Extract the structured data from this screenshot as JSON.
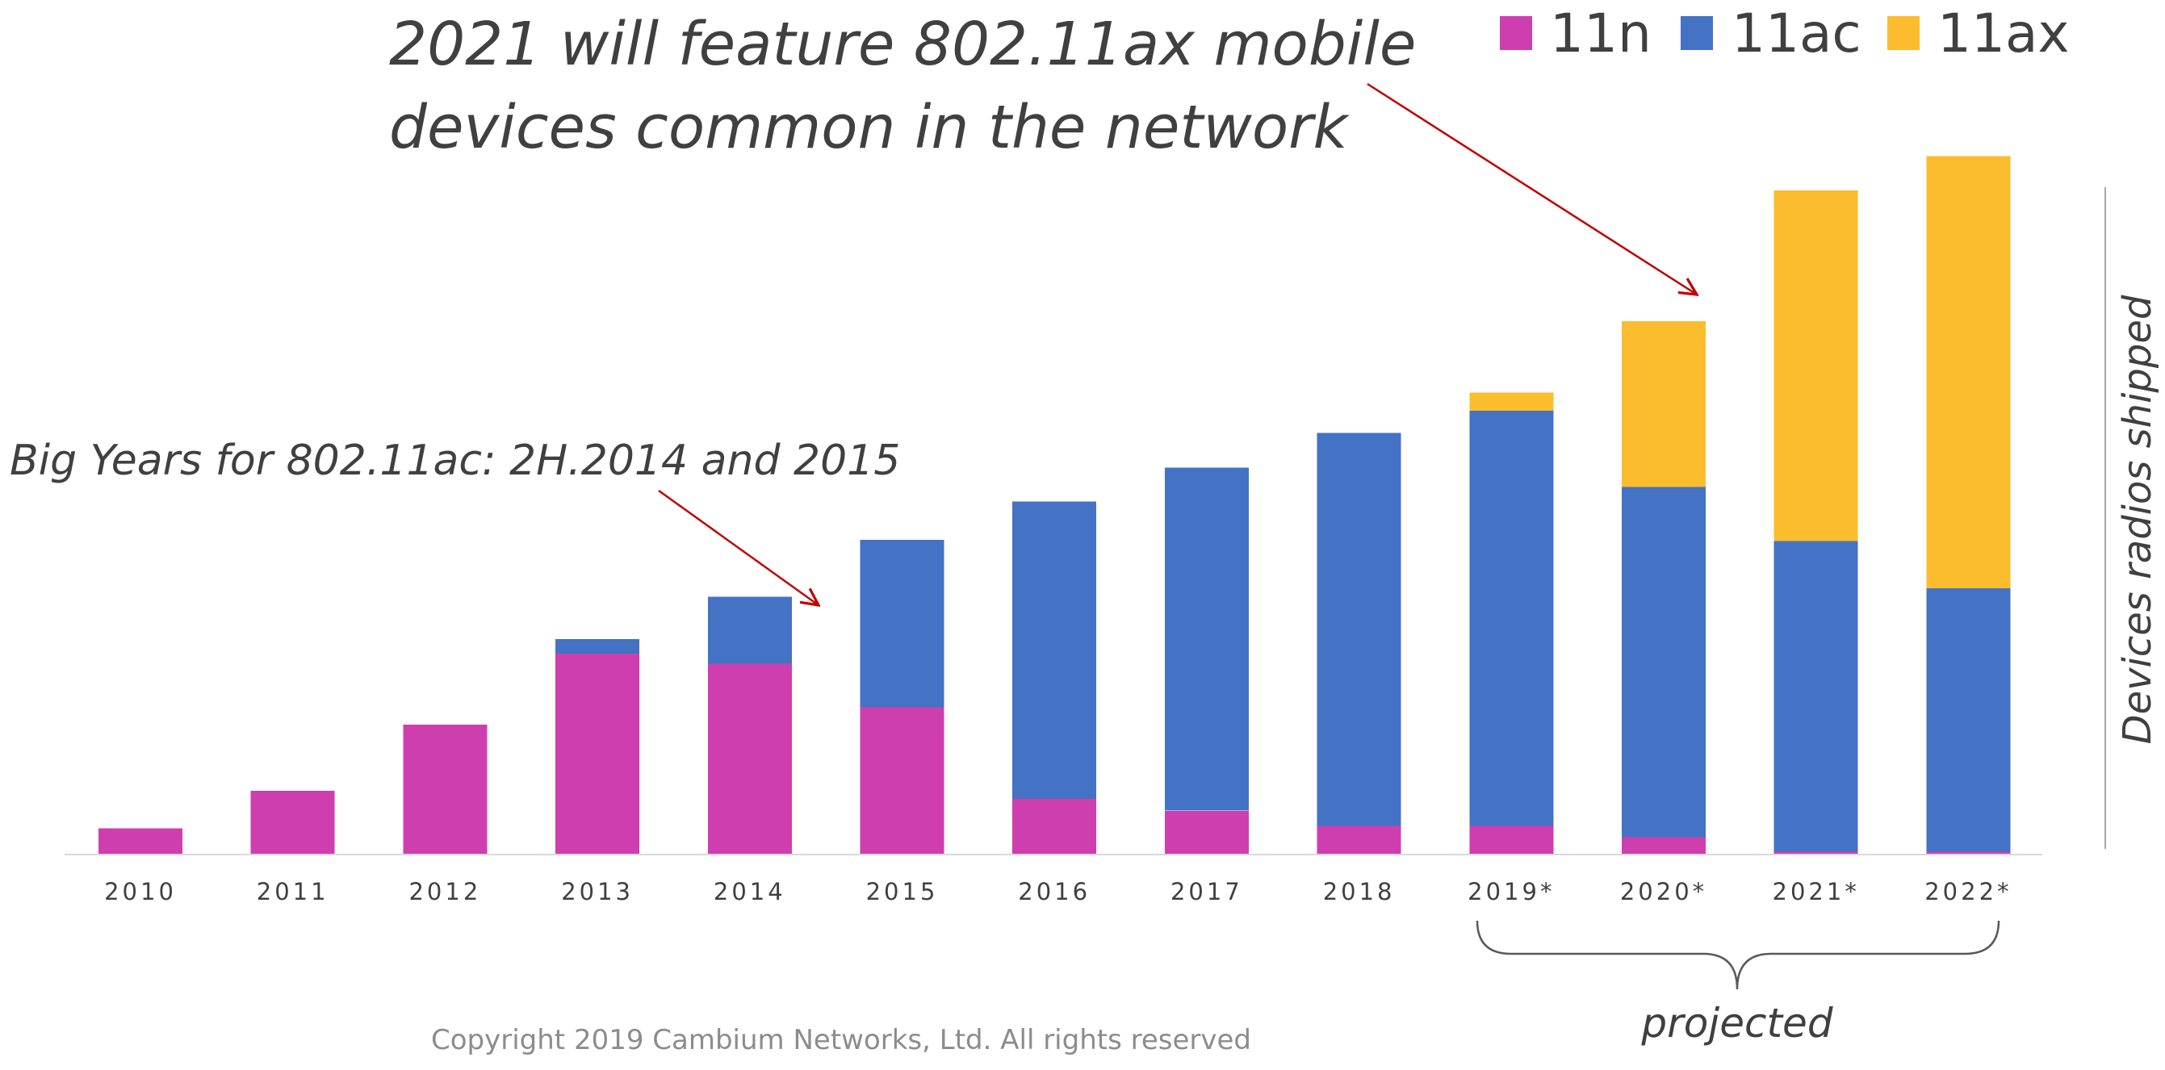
{
  "chart_data": {
    "type": "bar",
    "stacked": true,
    "categories": [
      "2010",
      "2011",
      "2012",
      "2013",
      "2014",
      "2015",
      "2016",
      "2017",
      "2018",
      "2019*",
      "2020*",
      "2021*",
      "2022*"
    ],
    "series": [
      {
        "name": "11n",
        "color": "#CF3EAF",
        "values": [
          3.8,
          9.2,
          18.7,
          28.9,
          27.5,
          21.2,
          8.0,
          6.3,
          4.1,
          4.1,
          2.5,
          0.4,
          0.4
        ]
      },
      {
        "name": "11ac",
        "color": "#4472C4",
        "values": [
          0,
          0,
          0,
          2.1,
          9.6,
          24.1,
          42.8,
          49.4,
          56.6,
          59.8,
          50.4,
          44.7,
          37.9
        ]
      },
      {
        "name": "11ax",
        "color": "#FBBC2E",
        "values": [
          0,
          0,
          0,
          0,
          0,
          0,
          0,
          0,
          0,
          2.6,
          23.9,
          50.5,
          62.2
        ]
      }
    ],
    "ylabel": "Devices radios shipped",
    "ylim": [
      0,
      100
    ],
    "grid": false,
    "legend_position": "top-right",
    "projected_bracket_label": "projected"
  },
  "annotations": {
    "headline_line1": "2021 will feature 802.11ax mobile",
    "headline_line2": "devices common in the network",
    "secondary": "Big Years for 802.11ac:  2H.2014 and 2015",
    "arrow_color": "#C00000"
  },
  "footer": {
    "copyright": "Copyright 2019 Cambium Networks, Ltd. All rights reserved"
  }
}
